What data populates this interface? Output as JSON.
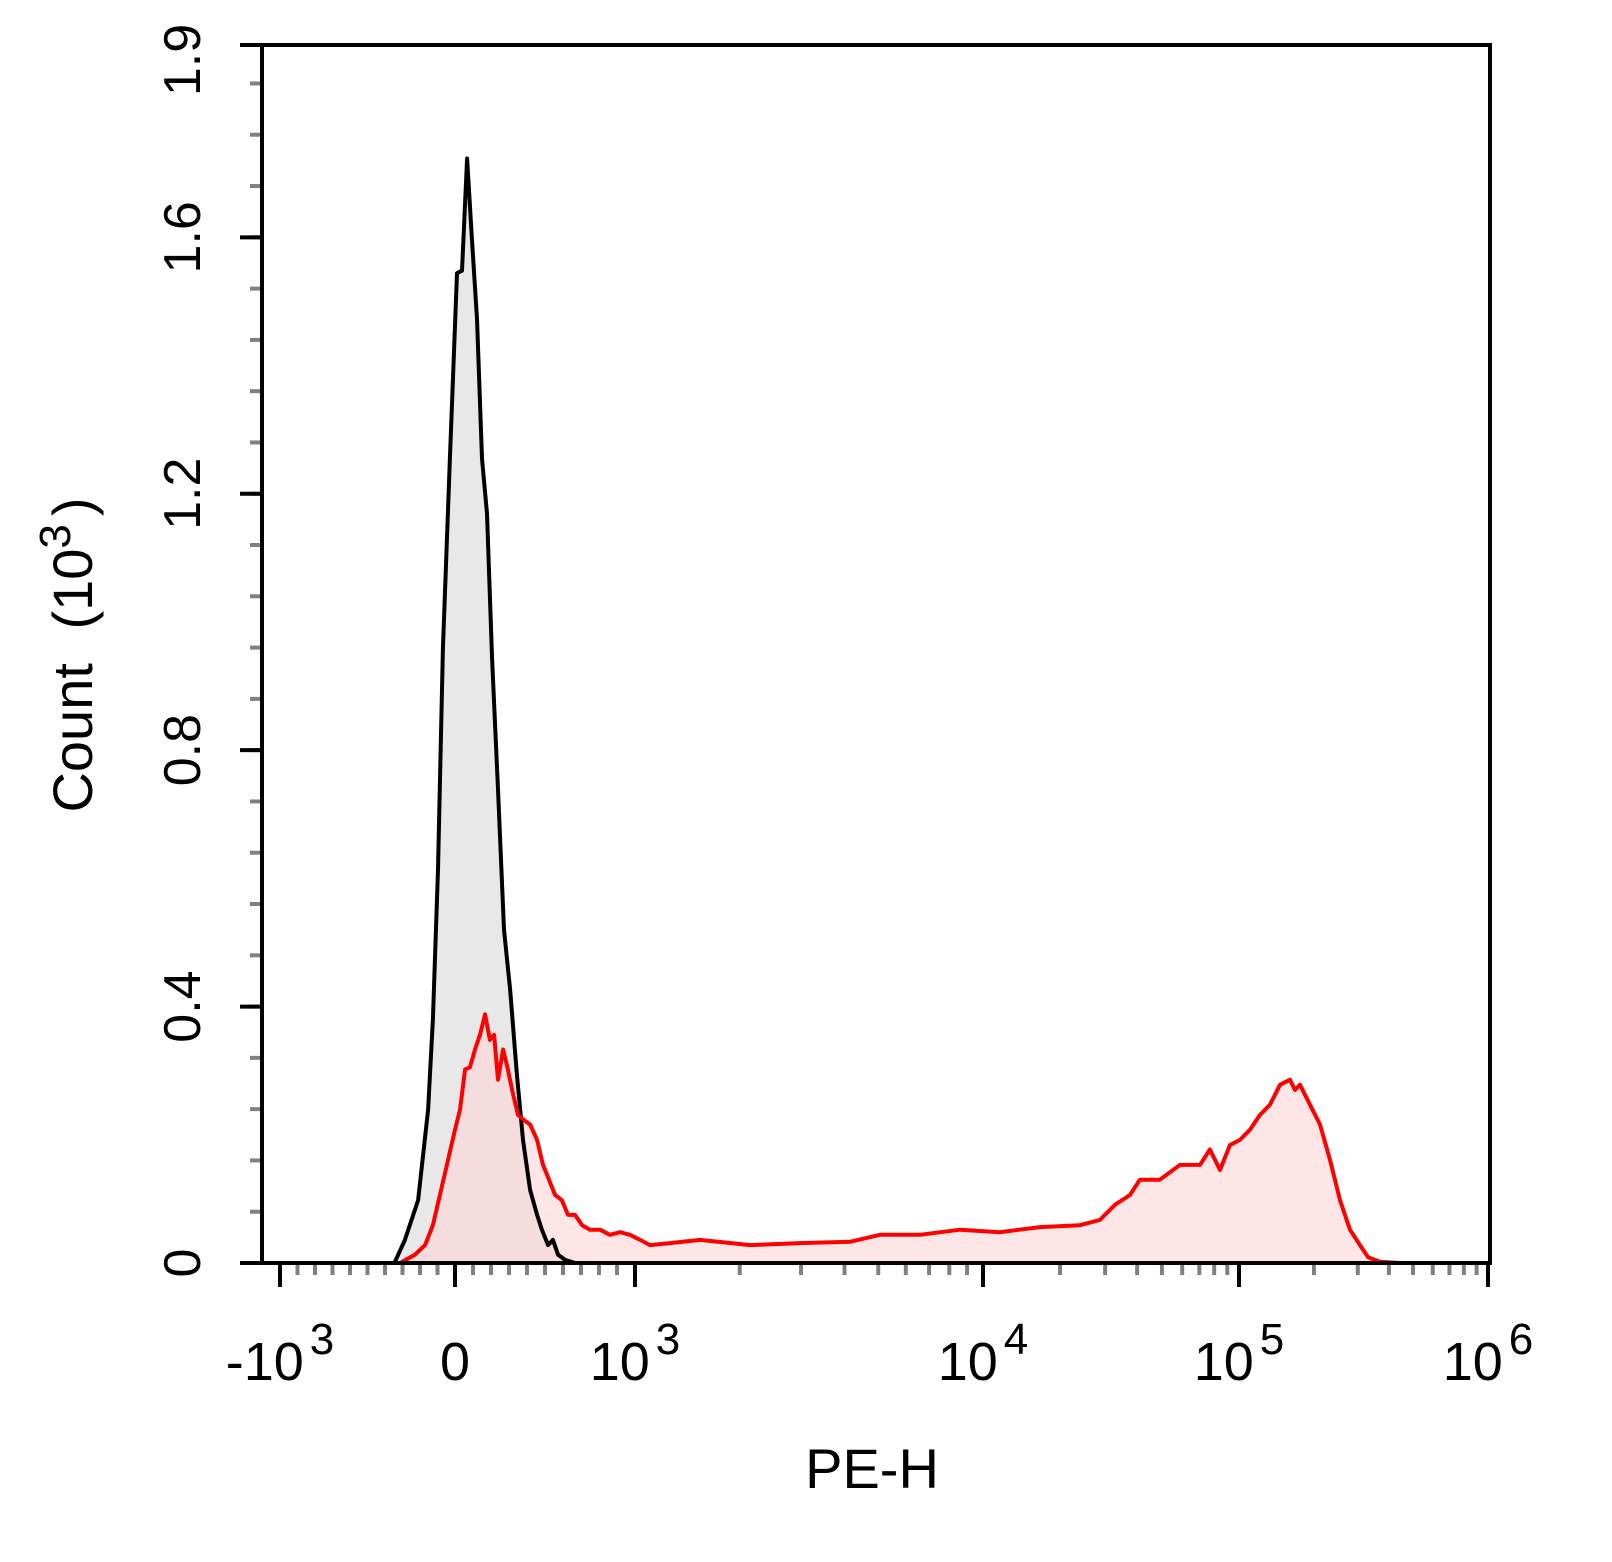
{
  "chart_data": {
    "type": "area",
    "title": "",
    "xlabel": "PE-H",
    "ylabel": "Count",
    "ylabel_unit": "(10",
    "ylabel_unit_exp": "3",
    "ylabel_unit_close": ")",
    "x_scale": "biexponential",
    "xlim": [
      -1000,
      1000000
    ],
    "ylim": [
      0,
      1.9
    ],
    "grid": false,
    "y_ticks": [
      {
        "value": 0,
        "label": "0"
      },
      {
        "value": 0.4,
        "label": "0.4"
      },
      {
        "value": 0.8,
        "label": "0.8"
      },
      {
        "value": 1.2,
        "label": "1.2"
      },
      {
        "value": 1.6,
        "label": "1.6"
      },
      {
        "value": 1.9,
        "label": "1.9"
      }
    ],
    "x_ticks": [
      {
        "value": -1000,
        "base": "-10",
        "exp": "3"
      },
      {
        "value": 0,
        "base": "0",
        "exp": ""
      },
      {
        "value": 1000,
        "base": "10",
        "exp": "3"
      },
      {
        "value": 10000,
        "base": "10",
        "exp": "4"
      },
      {
        "value": 100000,
        "base": "10",
        "exp": "5"
      },
      {
        "value": 1000000,
        "base": "10",
        "exp": "6"
      }
    ],
    "series": [
      {
        "color": "#000000",
        "fill": "#e8e8e8",
        "x": [
          -343,
          -286,
          -211,
          -154,
          -126,
          -97,
          -69,
          -29,
          11,
          39,
          67,
          94,
          122,
          150,
          178,
          206,
          239,
          272,
          306,
          344,
          378,
          417,
          456,
          483,
          517,
          544,
          572,
          611,
          667
        ],
        "y": [
          0.002,
          0.036,
          0.098,
          0.239,
          0.38,
          0.614,
          0.958,
          1.255,
          1.544,
          1.548,
          1.723,
          1.598,
          1.473,
          1.255,
          1.169,
          0.942,
          0.739,
          0.52,
          0.427,
          0.294,
          0.192,
          0.114,
          0.075,
          0.052,
          0.028,
          0.036,
          0.013,
          0.005,
          0
        ]
      },
      {
        "color": "#ff0000",
        "fill": "#ffd6d6",
        "x": [
          -314,
          -229,
          -171,
          -126,
          -86,
          -46,
          0,
          28,
          56,
          83,
          111,
          139,
          167,
          194,
          217,
          239,
          267,
          294,
          317,
          350,
          383,
          417,
          456,
          489,
          522,
          556,
          594,
          628,
          667,
          706,
          750,
          806,
          861,
          917,
          972,
          1034,
          1104,
          1261,
          1538,
          2141,
          2980,
          4147,
          5058,
          6592,
          8590,
          11650,
          16700,
          23900,
          28600,
          32800,
          37500,
          41000,
          49100,
          58800,
          70400,
          77000,
          84300,
          92200,
          100900,
          110700,
          121400,
          133200,
          146100,
          160300,
          167900,
          175800,
          192800,
          211500,
          232000,
          254400,
          279200,
          306100,
          329600,
          368400,
          443300
        ],
        "y": [
          0,
          0.013,
          0.028,
          0.059,
          0.106,
          0.153,
          0.208,
          0.239,
          0.302,
          0.305,
          0.333,
          0.356,
          0.388,
          0.348,
          0.356,
          0.286,
          0.333,
          0.302,
          0.27,
          0.231,
          0.223,
          0.216,
          0.192,
          0.153,
          0.13,
          0.106,
          0.098,
          0.075,
          0.075,
          0.059,
          0.052,
          0.052,
          0.044,
          0.048,
          0.044,
          0.036,
          0.028,
          0.031,
          0.036,
          0.028,
          0.031,
          0.033,
          0.044,
          0.044,
          0.052,
          0.048,
          0.056,
          0.059,
          0.067,
          0.091,
          0.106,
          0.13,
          0.13,
          0.153,
          0.153,
          0.177,
          0.145,
          0.184,
          0.192,
          0.208,
          0.231,
          0.247,
          0.278,
          0.286,
          0.27,
          0.278,
          0.247,
          0.216,
          0.161,
          0.098,
          0.052,
          0.028,
          0.009,
          0.002,
          0
        ]
      }
    ]
  }
}
